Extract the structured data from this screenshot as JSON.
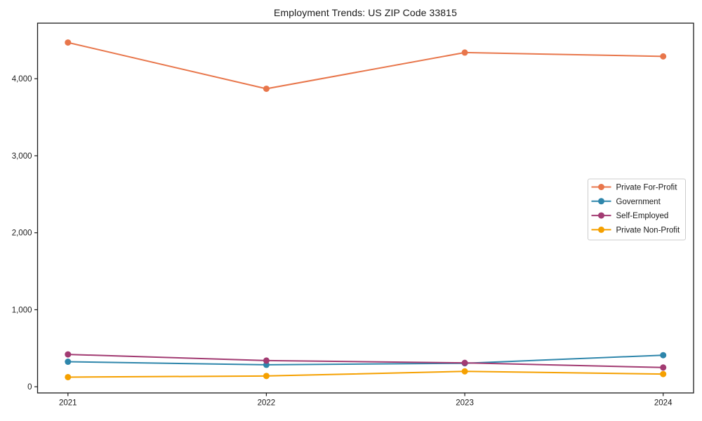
{
  "chart_data": {
    "type": "line",
    "title": "Employment Trends: US ZIP Code 33815",
    "xlabel": "",
    "ylabel": "",
    "categories": [
      "2021",
      "2022",
      "2023",
      "2024"
    ],
    "series": [
      {
        "name": "Private For-Profit",
        "color": "#E8764B",
        "values": [
          4470,
          3870,
          4340,
          4290
        ]
      },
      {
        "name": "Government",
        "color": "#2E86AB",
        "values": [
          325,
          285,
          305,
          410
        ]
      },
      {
        "name": "Self-Employed",
        "color": "#A23B72",
        "values": [
          420,
          340,
          310,
          250
        ]
      },
      {
        "name": "Private Non-Profit",
        "color": "#F5A000",
        "values": [
          125,
          140,
          200,
          165
        ]
      }
    ],
    "yticks": [
      0,
      1000,
      2000,
      3000,
      4000
    ],
    "ytick_labels": [
      "0",
      "1,000",
      "2,000",
      "3,000",
      "4,000"
    ],
    "ylim": [
      -90,
      4720
    ],
    "grid": false,
    "legend_position": "center right",
    "marker": "circle"
  }
}
